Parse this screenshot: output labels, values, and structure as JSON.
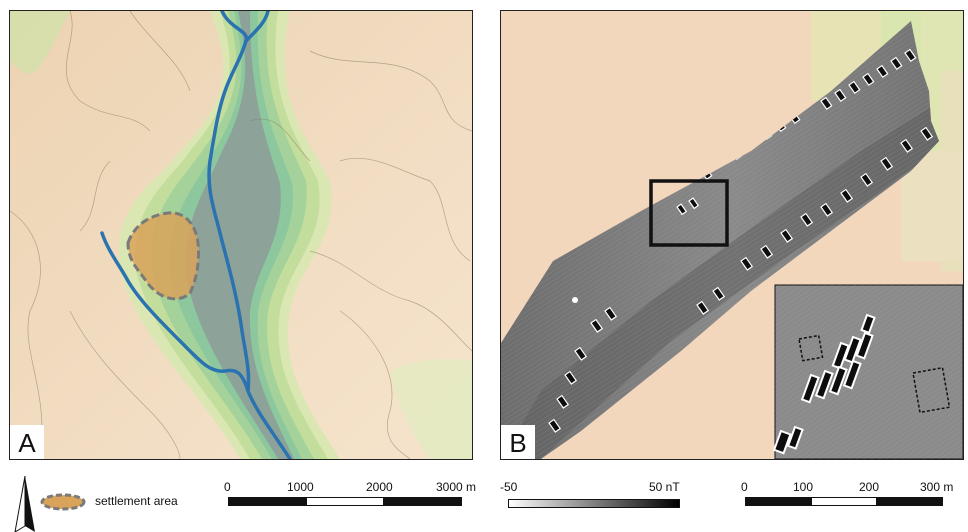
{
  "panel_a": {
    "label": "A"
  },
  "panel_b": {
    "label": "B"
  },
  "legend": {
    "settlement_label": "settlement area",
    "scale_a": {
      "ticks": [
        "0",
        "1000",
        "2000",
        "3000 m"
      ]
    },
    "magnetometer": {
      "min_label": "-50",
      "max_label": "50 nT"
    },
    "scale_b": {
      "ticks": [
        "0",
        "100",
        "200",
        "300 m"
      ]
    }
  },
  "colors": {
    "terrain": "#f2dcc0",
    "valley_green": "#a9d48e",
    "river": "#2a73b0",
    "settlement_fill": "#d9a35a",
    "settlement_outline": "#7a7a7a"
  }
}
